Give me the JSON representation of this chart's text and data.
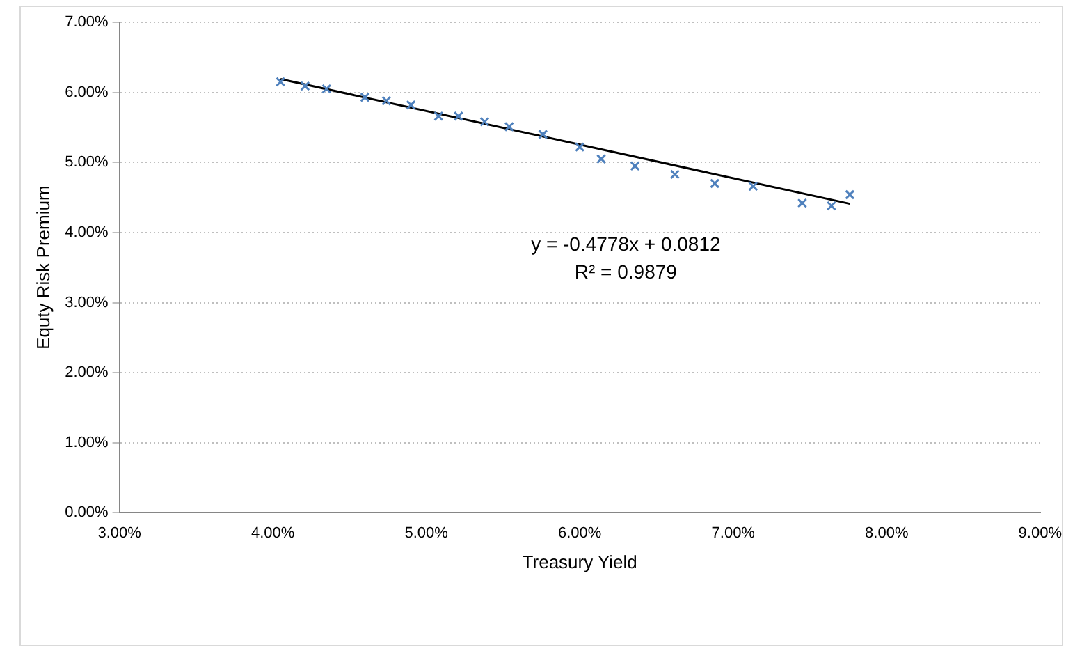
{
  "chart_data": {
    "type": "scatter",
    "xlabel": "Treasury Yield",
    "ylabel": "Equty Risk Premium",
    "xlim": [
      3,
      9
    ],
    "xticks": [
      {
        "value": 3,
        "label": "3.00%"
      },
      {
        "value": 4,
        "label": "4.00%"
      },
      {
        "value": 5,
        "label": "5.00%"
      },
      {
        "value": 6,
        "label": "6.00%"
      },
      {
        "value": 7,
        "label": "7.00%"
      },
      {
        "value": 8,
        "label": "8.00%"
      },
      {
        "value": 9,
        "label": "9.00%"
      }
    ],
    "ylim": [
      0,
      7
    ],
    "yticks": [
      {
        "value": 0,
        "label": "0.00%"
      },
      {
        "value": 1,
        "label": "1.00%"
      },
      {
        "value": 2,
        "label": "2.00%"
      },
      {
        "value": 3,
        "label": "3.00%"
      },
      {
        "value": 4,
        "label": "4.00%"
      },
      {
        "value": 5,
        "label": "5.00%"
      },
      {
        "value": 6,
        "label": "6.00%"
      },
      {
        "value": 7,
        "label": "7.00%"
      }
    ],
    "grid": "y",
    "legend": false,
    "marker": "cross",
    "series": [
      {
        "color": "#4f81bd",
        "x": [
          4.05,
          4.21,
          4.35,
          4.6,
          4.74,
          4.9,
          5.08,
          5.21,
          5.38,
          5.54,
          5.76,
          6.0,
          6.14,
          6.36,
          6.62,
          6.88,
          7.13,
          7.45,
          7.64,
          7.76
        ],
        "values": [
          6.15,
          6.09,
          6.05,
          5.93,
          5.88,
          5.82,
          5.66,
          5.66,
          5.58,
          5.51,
          5.4,
          5.22,
          5.05,
          4.95,
          4.83,
          4.7,
          4.66,
          4.42,
          4.38,
          4.54
        ]
      },
      {
        "type": "line",
        "color": "#000000",
        "marker": "none",
        "x": [
          4.05,
          7.76
        ],
        "values": [
          6.19,
          4.41
        ]
      }
    ],
    "annotations": [
      "y = -0.4778x + 0.0812",
      "R² = 0.9879"
    ]
  }
}
